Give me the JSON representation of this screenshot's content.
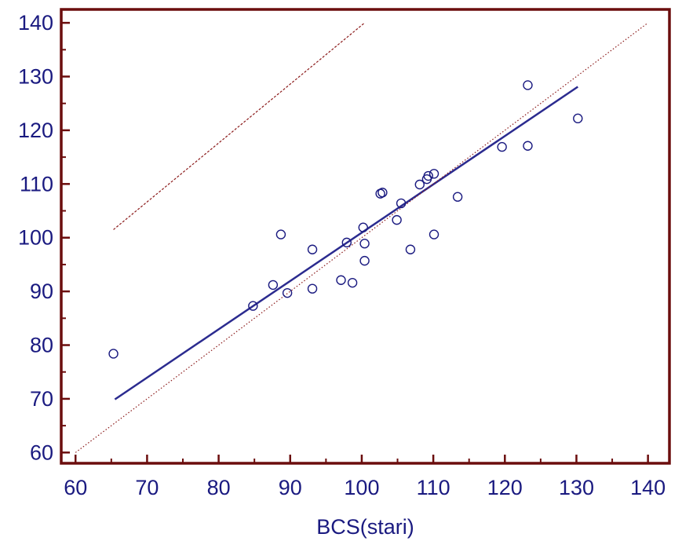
{
  "chart_data": {
    "type": "scatter",
    "title": "",
    "xlabel": "BCS(stari)",
    "ylabel": "",
    "xlim": [
      58,
      143
    ],
    "ylim": [
      58,
      142.5
    ],
    "xticks": [
      "60",
      "70",
      "80",
      "90",
      "100",
      "110",
      "120",
      "130",
      "140"
    ],
    "yticks": [
      "60",
      "70",
      "80",
      "90",
      "100",
      "110",
      "120",
      "130",
      "140"
    ],
    "grid": false,
    "colors": {
      "frame": "#6b0d0d",
      "points": "#1a1a80",
      "regression": "#2b2b8f",
      "identity": "#8b1a1a",
      "offset_line": "#8b1a1a",
      "labels": "#1a1a80"
    },
    "points": [
      {
        "x": 65.3,
        "y": 78.4
      },
      {
        "x": 84.8,
        "y": 87.3
      },
      {
        "x": 87.6,
        "y": 91.2
      },
      {
        "x": 88.7,
        "y": 100.6
      },
      {
        "x": 89.6,
        "y": 89.7
      },
      {
        "x": 93.1,
        "y": 97.8
      },
      {
        "x": 93.1,
        "y": 90.5
      },
      {
        "x": 97.1,
        "y": 92.1
      },
      {
        "x": 97.9,
        "y": 99.1
      },
      {
        "x": 98.7,
        "y": 91.6
      },
      {
        "x": 100.2,
        "y": 101.9
      },
      {
        "x": 100.4,
        "y": 98.9
      },
      {
        "x": 100.4,
        "y": 95.7
      },
      {
        "x": 102.6,
        "y": 108.2
      },
      {
        "x": 102.9,
        "y": 108.4
      },
      {
        "x": 104.9,
        "y": 103.3
      },
      {
        "x": 105.5,
        "y": 106.4
      },
      {
        "x": 106.8,
        "y": 97.8
      },
      {
        "x": 108.1,
        "y": 109.9
      },
      {
        "x": 109.1,
        "y": 110.9
      },
      {
        "x": 109.3,
        "y": 111.5
      },
      {
        "x": 110.1,
        "y": 111.9
      },
      {
        "x": 110.1,
        "y": 100.6
      },
      {
        "x": 113.4,
        "y": 107.6
      },
      {
        "x": 119.6,
        "y": 116.9
      },
      {
        "x": 123.2,
        "y": 117.1
      },
      {
        "x": 123.2,
        "y": 128.4
      },
      {
        "x": 130.2,
        "y": 122.2
      }
    ],
    "lines": [
      {
        "style": "solid",
        "from": [
          65.5,
          69.9
        ],
        "to": [
          130.2,
          128.1
        ]
      },
      {
        "style": "dotted",
        "from": [
          60,
          60
        ],
        "to": [
          140,
          140
        ]
      },
      {
        "style": "dashed",
        "from": [
          65.3,
          101.5
        ],
        "to": [
          100.4,
          140
        ]
      }
    ]
  }
}
